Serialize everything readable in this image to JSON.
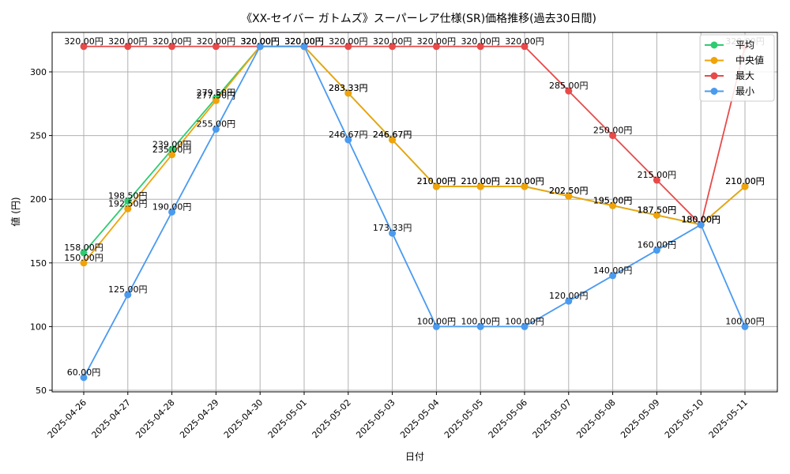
{
  "chart_data": {
    "type": "line",
    "title": "《XX-セイバー ガトムズ》スーパーレア仕様(SR)価格推移(過去30日間)",
    "xlabel": "日付",
    "ylabel": "値 (円)",
    "ylim": [
      50,
      330
    ],
    "yticks": [
      50,
      100,
      150,
      200,
      250,
      300
    ],
    "grid": true,
    "legend_position": "top-right",
    "x": [
      "2025-04-26",
      "2025-04-27",
      "2025-04-28",
      "2025-04-29",
      "2025-04-30",
      "2025-05-01",
      "2025-05-02",
      "2025-05-03",
      "2025-05-04",
      "2025-05-05",
      "2025-05-06",
      "2025-05-07",
      "2025-05-08",
      "2025-05-09",
      "2025-05-10",
      "2025-05-11"
    ],
    "series": [
      {
        "name": "平均",
        "color": "#2ecc71",
        "values": [
          158.0,
          198.5,
          239.0,
          279.5,
          320.0,
          320.0,
          283.33,
          246.67,
          210.0,
          210.0,
          210.0,
          202.5,
          195.0,
          187.5,
          180.0,
          210.0
        ],
        "labels": [
          "158.00円",
          "198.50円",
          "239.00円",
          "279.50円",
          "320.00円",
          "320.00円",
          "283.33円",
          "246.67円",
          "210.00円",
          "210.00円",
          "210.00円",
          "202.50円",
          "195.00円",
          "187.50円",
          "180.00円",
          "210.00円"
        ]
      },
      {
        "name": "中央値",
        "color": "#f0a30a",
        "values": [
          150.0,
          192.5,
          235.0,
          277.5,
          320.0,
          320.0,
          283.33,
          246.67,
          210.0,
          210.0,
          210.0,
          202.5,
          195.0,
          187.5,
          180.0,
          210.0
        ],
        "labels": [
          "150.00円",
          "192.50円",
          "235.00円",
          "277.50円",
          "320.00円",
          "320.00円",
          "283.33円",
          "246.67円",
          "210.00円",
          "210.00円",
          "210.00円",
          "202.50円",
          "195.00円",
          "187.50円",
          "180.00円",
          "210.00円"
        ]
      },
      {
        "name": "最大",
        "color": "#e84a4a",
        "values": [
          320.0,
          320.0,
          320.0,
          320.0,
          320.0,
          320.0,
          320.0,
          320.0,
          320.0,
          320.0,
          320.0,
          285.0,
          250.0,
          215.0,
          180.0,
          320.0
        ],
        "labels": [
          "320.00円",
          "320.00円",
          "320.00円",
          "320.00円",
          "320.00円",
          "320.00円",
          "320.00円",
          "320.00円",
          "320.00円",
          "320.00円",
          "320.00円",
          "285.00円",
          "250.00円",
          "215.00円",
          "180.00円",
          "320.00円"
        ]
      },
      {
        "name": "最小",
        "color": "#4a9af0",
        "values": [
          60.0,
          125.0,
          190.0,
          255.0,
          320.0,
          320.0,
          246.67,
          173.33,
          100.0,
          100.0,
          100.0,
          120.0,
          140.0,
          160.0,
          180.0,
          100.0
        ],
        "labels": [
          "60.00円",
          "125.00円",
          "190.00円",
          "255.00円",
          "320.00円",
          "320.00円",
          "246.67円",
          "173.33円",
          "100.00円",
          "100.00円",
          "100.00円",
          "120.00円",
          "140.00円",
          "160.00円",
          "180.00円",
          "100.00円"
        ]
      }
    ]
  }
}
